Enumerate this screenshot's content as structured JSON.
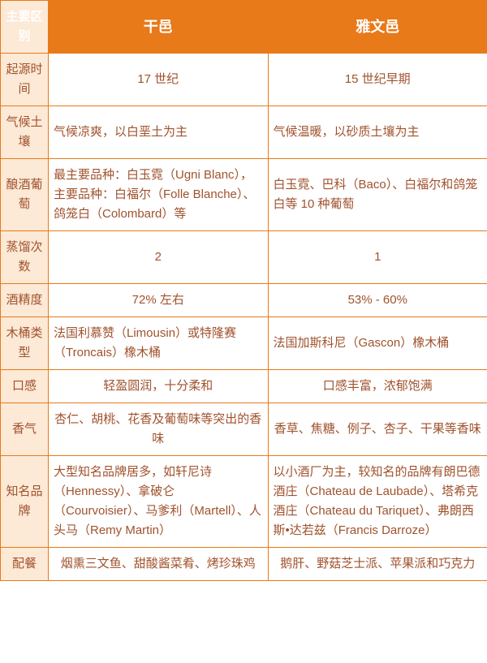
{
  "table": {
    "header": {
      "label": "主要区别",
      "col1": "干邑",
      "col2": "雅文邑"
    },
    "rows": [
      {
        "label": "起源时间",
        "col1": "17 世纪",
        "col2": "15 世纪早期",
        "align": "center"
      },
      {
        "label": "气候土壤",
        "col1": "气候凉爽，以白垩土为主",
        "col2": "气候温暖，以砂质土壤为主",
        "align": "left"
      },
      {
        "label": "酿酒葡萄",
        "col1": "最主要品种：白玉霓（Ugni Blanc），主要品种：白福尔（Folle Blanche）、鸽笼白（Colombard）等",
        "col2": "白玉霓、巴科（Baco）、白福尔和鸽笼白等 10 种葡萄",
        "align": "left"
      },
      {
        "label": "蒸馏次数",
        "col1": "2",
        "col2": "1",
        "align": "center"
      },
      {
        "label": "酒精度",
        "col1": "72% 左右",
        "col2": "53% - 60%",
        "align": "center"
      },
      {
        "label": "木桶类型",
        "col1": "法国利慕赞（Limousin）或特隆赛（Troncais）橡木桶",
        "col2": "法国加斯科尼（Gascon）橡木桶",
        "align": "left"
      },
      {
        "label": "口感",
        "col1": "轻盈圆润，十分柔和",
        "col2": "口感丰富，浓郁饱满",
        "align": "center"
      },
      {
        "label": "香气",
        "col1": "杏仁、胡桃、花香及葡萄味等突出的香味",
        "col2": "香草、焦糖、例子、杏子、干果等香味",
        "align": "center"
      },
      {
        "label": "知名品牌",
        "col1": "大型知名品牌居多，如轩尼诗（Hennessy）、拿破仑（Courvoisier）、马爹利（Martell）、人头马（Remy Martin）",
        "col2": "以小酒厂为主，较知名的品牌有朗巴德酒庄（Chateau de Laubade）、塔希克酒庄（Chateau du Tariquet）、弗朗西斯•达若兹（Francis Darroze）",
        "align": "left"
      },
      {
        "label": "配餐",
        "col1": "烟熏三文鱼、甜酸酱菜肴、烤珍珠鸡",
        "col2": "鹅肝、野菇芝士派、苹果派和巧克力",
        "align": "center"
      }
    ],
    "colors": {
      "header_bg": "#e87a1a",
      "header_text": "#ffffff",
      "label_bg": "#fce9d6",
      "cell_text": "#a0522d",
      "border": "#e87a1a",
      "bg": "#ffffff"
    },
    "fonts": {
      "header_size": 18,
      "cell_size": 15
    }
  }
}
